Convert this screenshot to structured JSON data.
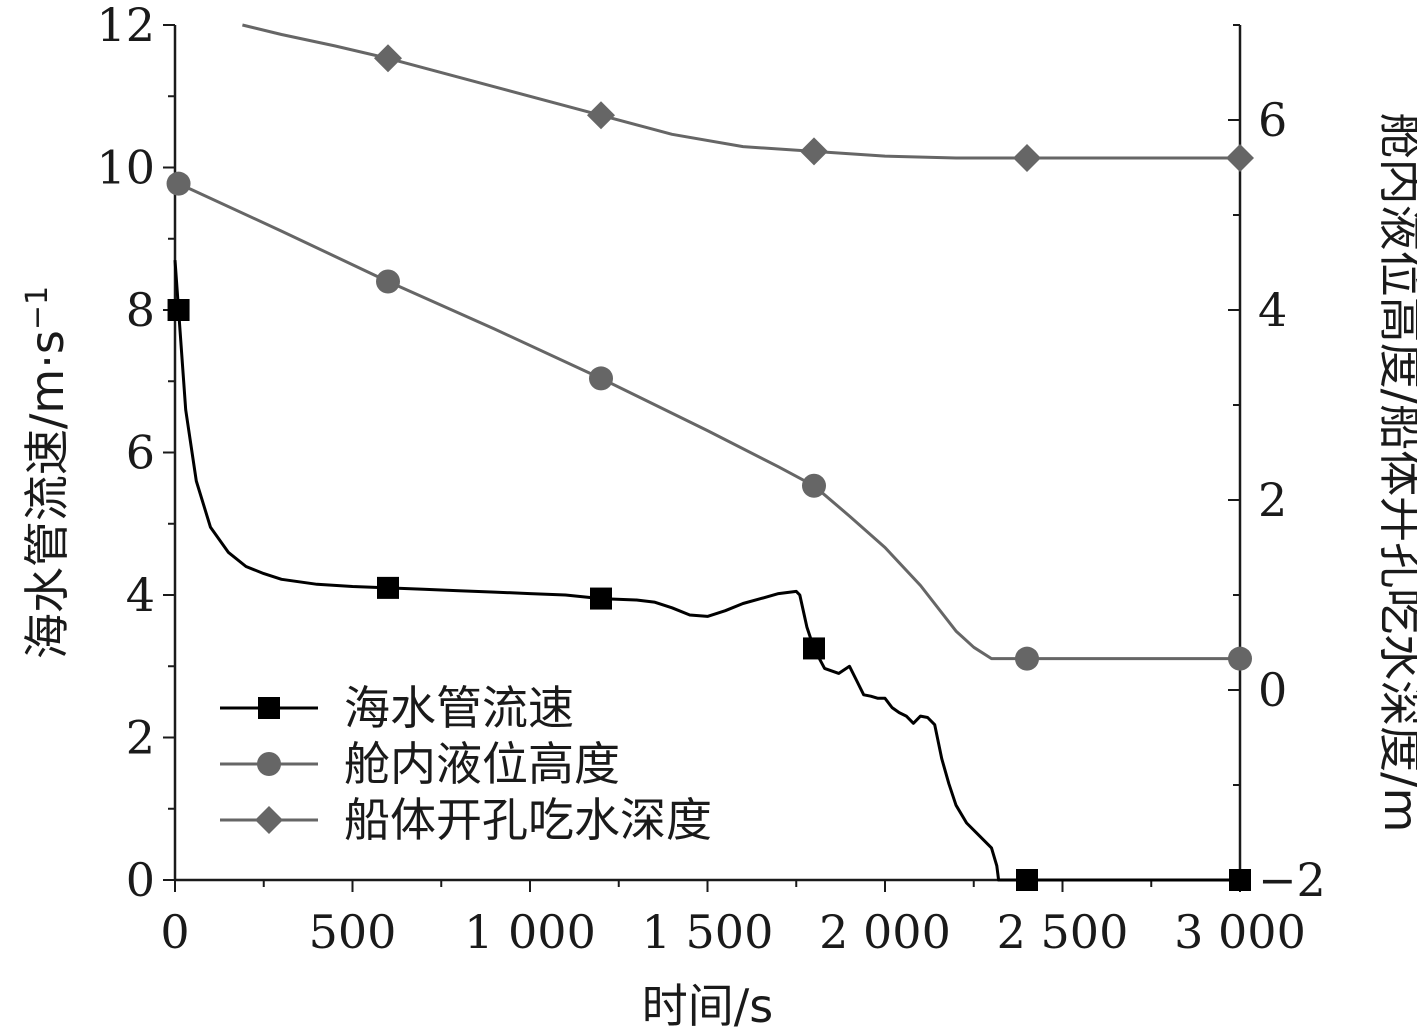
{
  "chart_data": {
    "type": "line",
    "x": {
      "label": "时间/s",
      "lim": [
        0,
        3000
      ],
      "ticks": [
        0,
        500,
        1000,
        1500,
        2000,
        2500,
        3000
      ],
      "tick_labels": [
        "0",
        "500",
        "1 000",
        "1 500",
        "2 000",
        "2 500",
        "3 000"
      ]
    },
    "y_left": {
      "label": "海水管流速/m·s",
      "label_superscript": "−1",
      "lim": [
        0,
        12
      ],
      "ticks": [
        0,
        2,
        4,
        6,
        8,
        10,
        12
      ],
      "tick_labels": [
        "0",
        "2",
        "4",
        "6",
        "8",
        "10",
        "12"
      ]
    },
    "y_right": {
      "label": "舱内液位高度/船体开孔吃水深度/m",
      "lim": [
        -2,
        7
      ],
      "ticks": [
        -2,
        0,
        2,
        4,
        6
      ],
      "tick_labels": [
        "−2",
        "0",
        "2",
        "4",
        "6"
      ]
    },
    "grid": false,
    "legend_position": "bottom-left",
    "series": [
      {
        "name": "海水管流速",
        "axis": "left",
        "marker": "square",
        "color": "#000000",
        "marker_x": [
          10,
          600,
          1200,
          1800,
          2400,
          3000
        ],
        "x": [
          0,
          30,
          60,
          100,
          150,
          200,
          250,
          300,
          400,
          500,
          600,
          700,
          800,
          900,
          1000,
          1100,
          1200,
          1300,
          1350,
          1400,
          1450,
          1500,
          1550,
          1600,
          1650,
          1700,
          1750,
          1760,
          1780,
          1800,
          1830,
          1870,
          1900,
          1920,
          1940,
          1960,
          1980,
          2000,
          2020,
          2040,
          2060,
          2080,
          2100,
          2120,
          2140,
          2160,
          2180,
          2200,
          2230,
          2260,
          2280,
          2300,
          2315,
          2320,
          2400,
          2500,
          3000
        ],
        "y": [
          8.7,
          6.6,
          5.6,
          4.95,
          4.6,
          4.4,
          4.3,
          4.22,
          4.15,
          4.12,
          4.1,
          4.08,
          4.06,
          4.04,
          4.02,
          4.0,
          3.95,
          3.93,
          3.9,
          3.82,
          3.72,
          3.7,
          3.78,
          3.88,
          3.95,
          4.02,
          4.05,
          4.0,
          3.55,
          3.25,
          2.97,
          2.9,
          3.0,
          2.8,
          2.6,
          2.58,
          2.55,
          2.55,
          2.42,
          2.35,
          2.3,
          2.2,
          2.3,
          2.28,
          2.18,
          1.7,
          1.35,
          1.05,
          0.8,
          0.65,
          0.55,
          0.45,
          0.2,
          0.0,
          0.0,
          0.0,
          0.0
        ]
      },
      {
        "name": "舱内液位高度",
        "axis": "right",
        "marker": "circle",
        "color": "#666666",
        "marker_x": [
          10,
          600,
          1200,
          1800,
          2400,
          3000
        ],
        "x": [
          0,
          10,
          300,
          600,
          900,
          1200,
          1500,
          1700,
          1800,
          1900,
          2000,
          2100,
          2200,
          2250,
          2300,
          2310,
          2400,
          3000
        ],
        "y": [
          5.35,
          5.33,
          4.83,
          4.3,
          3.8,
          3.28,
          2.73,
          2.35,
          2.15,
          1.83,
          1.5,
          1.1,
          0.62,
          0.45,
          0.33,
          0.33,
          0.33,
          0.33
        ]
      },
      {
        "name": "船体开孔吃水深度",
        "axis": "right",
        "marker": "diamond",
        "color": "#666666",
        "marker_x": [
          600,
          1200,
          1800,
          2400,
          3000
        ],
        "x": [
          190,
          300,
          450,
          600,
          900,
          1200,
          1400,
          1600,
          1800,
          2000,
          2200,
          2400,
          2700,
          3000
        ],
        "y": [
          7.0,
          6.9,
          6.78,
          6.65,
          6.35,
          6.05,
          5.85,
          5.72,
          5.67,
          5.62,
          5.6,
          5.6,
          5.6,
          5.6
        ]
      }
    ]
  }
}
